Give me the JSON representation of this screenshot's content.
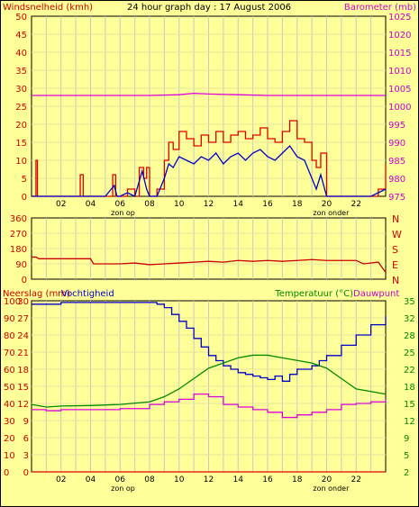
{
  "header": {
    "left_label": "Windsnelheid (kmh)",
    "title": "24 hour graph day : 17 August 2006",
    "right_label": "Barometer (mb)"
  },
  "footer_labels": {
    "sunrise": "zon op",
    "sunset": "zon onder"
  },
  "colors": {
    "background": "#ffff99",
    "grid_v": "#c8c8c8",
    "grid_h": "#e6e6a0",
    "wind": "#0000cc",
    "gust": "#dd0000",
    "barometer": "#dd00dd",
    "temperature": "#008800",
    "dewpoint": "#dd00dd",
    "humidity": "#0000cc",
    "direction": "#cc0000",
    "rain": "#dd0000",
    "left_axis_text": "#cc0000",
    "right_axis_text_top": "#cc00cc",
    "right_axis_text_bottom": "#008800"
  },
  "chart_data": [
    {
      "type": "line",
      "name": "wind_barometer",
      "x_ticks": [
        "02",
        "04",
        "06",
        "08",
        "10",
        "12",
        "14",
        "16",
        "18",
        "20",
        "22"
      ],
      "xlim": [
        0,
        24
      ],
      "left_axis": {
        "label": "Windsnelheid (kmh)",
        "ticks": [
          0,
          5,
          10,
          15,
          20,
          25,
          30,
          35,
          40,
          45,
          50
        ],
        "ylim": [
          0,
          50
        ]
      },
      "right_axis": {
        "label": "Barometer (mb)",
        "ticks": [
          975,
          980,
          985,
          990,
          995,
          1000,
          1005,
          1010,
          1015,
          1020,
          1025
        ],
        "ylim": [
          975,
          1025
        ]
      },
      "wind_speed": [
        [
          0,
          0
        ],
        [
          0.5,
          0
        ],
        [
          1,
          0
        ],
        [
          2,
          0
        ],
        [
          3,
          0
        ],
        [
          4,
          0
        ],
        [
          5,
          0
        ],
        [
          5.6,
          3
        ],
        [
          5.8,
          0
        ],
        [
          6,
          0
        ],
        [
          6.5,
          1
        ],
        [
          7,
          0
        ],
        [
          7.5,
          7
        ],
        [
          7.8,
          2
        ],
        [
          8,
          0
        ],
        [
          8.5,
          0
        ],
        [
          9,
          5
        ],
        [
          9.3,
          9
        ],
        [
          9.6,
          8
        ],
        [
          10,
          11
        ],
        [
          10.5,
          10
        ],
        [
          11,
          9
        ],
        [
          11.5,
          11
        ],
        [
          12,
          10
        ],
        [
          12.5,
          12
        ],
        [
          13,
          9
        ],
        [
          13.5,
          11
        ],
        [
          14,
          12
        ],
        [
          14.5,
          10
        ],
        [
          15,
          12
        ],
        [
          15.5,
          13
        ],
        [
          16,
          11
        ],
        [
          16.5,
          10
        ],
        [
          17,
          12
        ],
        [
          17.5,
          14
        ],
        [
          18,
          11
        ],
        [
          18.5,
          10
        ],
        [
          19,
          5
        ],
        [
          19.3,
          2
        ],
        [
          19.6,
          6
        ],
        [
          20,
          0
        ],
        [
          20.5,
          0
        ],
        [
          21,
          0
        ],
        [
          22,
          0
        ],
        [
          23,
          0
        ],
        [
          23.5,
          1
        ],
        [
          24,
          2
        ]
      ],
      "wind_gust": [
        [
          0,
          0
        ],
        [
          0.3,
          10
        ],
        [
          0.4,
          0
        ],
        [
          1,
          0
        ],
        [
          2,
          0
        ],
        [
          3,
          0
        ],
        [
          3.3,
          6
        ],
        [
          3.5,
          0
        ],
        [
          5,
          0
        ],
        [
          5.5,
          6
        ],
        [
          5.7,
          0
        ],
        [
          6,
          0
        ],
        [
          6.5,
          2
        ],
        [
          7,
          0
        ],
        [
          7.3,
          8
        ],
        [
          7.6,
          5
        ],
        [
          7.8,
          8
        ],
        [
          8,
          0
        ],
        [
          8.5,
          2
        ],
        [
          9,
          10
        ],
        [
          9.3,
          15
        ],
        [
          9.6,
          13
        ],
        [
          10,
          18
        ],
        [
          10.5,
          16
        ],
        [
          11,
          14
        ],
        [
          11.5,
          17
        ],
        [
          12,
          15
        ],
        [
          12.5,
          18
        ],
        [
          13,
          15
        ],
        [
          13.5,
          17
        ],
        [
          14,
          18
        ],
        [
          14.5,
          16
        ],
        [
          15,
          17
        ],
        [
          15.5,
          19
        ],
        [
          16,
          16
        ],
        [
          16.5,
          15
        ],
        [
          17,
          18
        ],
        [
          17.5,
          21
        ],
        [
          18,
          16
        ],
        [
          18.5,
          15
        ],
        [
          19,
          10
        ],
        [
          19.3,
          8
        ],
        [
          19.6,
          12
        ],
        [
          20,
          0
        ],
        [
          20.5,
          0
        ],
        [
          21,
          0
        ],
        [
          22,
          0
        ],
        [
          23,
          0
        ],
        [
          23.5,
          2
        ],
        [
          24,
          9
        ]
      ],
      "barometer": [
        [
          0,
          1003
        ],
        [
          2,
          1003
        ],
        [
          4,
          1003
        ],
        [
          6,
          1003
        ],
        [
          8,
          1003
        ],
        [
          10,
          1003.2
        ],
        [
          11,
          1003.6
        ],
        [
          12,
          1003.4
        ],
        [
          14,
          1003.2
        ],
        [
          16,
          1003
        ],
        [
          18,
          1003
        ],
        [
          20,
          1003
        ],
        [
          22,
          1003
        ],
        [
          24,
          1003
        ]
      ]
    },
    {
      "type": "line",
      "name": "wind_direction",
      "x_ticks": [
        "02",
        "04",
        "06",
        "08",
        "10",
        "12",
        "14",
        "16",
        "18",
        "20",
        "22"
      ],
      "xlim": [
        0,
        24
      ],
      "left_axis": {
        "ticks": [
          0,
          90,
          180,
          270,
          360
        ],
        "ylim": [
          0,
          360
        ]
      },
      "right_labels": [
        "N",
        "W",
        "S",
        "E",
        "N"
      ],
      "direction": [
        [
          0,
          130
        ],
        [
          0.3,
          130
        ],
        [
          0.5,
          120
        ],
        [
          2,
          120
        ],
        [
          4,
          120
        ],
        [
          4.2,
          90
        ],
        [
          5,
          90
        ],
        [
          6,
          90
        ],
        [
          7,
          95
        ],
        [
          8,
          85
        ],
        [
          9,
          90
        ],
        [
          10,
          95
        ],
        [
          11,
          100
        ],
        [
          12,
          105
        ],
        [
          13,
          100
        ],
        [
          14,
          110
        ],
        [
          15,
          105
        ],
        [
          16,
          110
        ],
        [
          17,
          105
        ],
        [
          18,
          110
        ],
        [
          19,
          115
        ],
        [
          20,
          110
        ],
        [
          21,
          110
        ],
        [
          22,
          110
        ],
        [
          22.5,
          90
        ],
        [
          23.5,
          100
        ],
        [
          24,
          40
        ]
      ]
    },
    {
      "type": "line",
      "name": "temp_humidity_rain",
      "x_ticks": [
        "02",
        "04",
        "06",
        "08",
        "10",
        "12",
        "14",
        "16",
        "18",
        "20",
        "22"
      ],
      "xlim": [
        0,
        24
      ],
      "left_labels": {
        "rain": "Neerslag (mm)",
        "humidity": "Vochtigheid"
      },
      "left_axis_humidity": {
        "ticks": [
          0,
          10,
          20,
          30,
          40,
          50,
          60,
          70,
          80,
          90,
          100
        ],
        "ylim": [
          0,
          100
        ]
      },
      "left_axis_rain": {
        "ticks": [
          0,
          3,
          6,
          9,
          12,
          15,
          18,
          21,
          24,
          27,
          30
        ],
        "ylim": [
          0,
          30
        ]
      },
      "right_axis": {
        "label": "Temperatuur (°C)",
        "label2": "Dauwpunt",
        "ticks": [
          2,
          5,
          9,
          12,
          15,
          18,
          22,
          25,
          28,
          32,
          35
        ],
        "ylim": [
          2,
          35
        ]
      },
      "humidity": [
        [
          0,
          98
        ],
        [
          1,
          98
        ],
        [
          2,
          99
        ],
        [
          4,
          99
        ],
        [
          6,
          99
        ],
        [
          8,
          99
        ],
        [
          8.5,
          98
        ],
        [
          9,
          96
        ],
        [
          9.5,
          92
        ],
        [
          10,
          88
        ],
        [
          10.5,
          84
        ],
        [
          11,
          78
        ],
        [
          11.5,
          73
        ],
        [
          12,
          68
        ],
        [
          12.5,
          65
        ],
        [
          13,
          62
        ],
        [
          13.5,
          60
        ],
        [
          14,
          58
        ],
        [
          14.5,
          57
        ],
        [
          15,
          56
        ],
        [
          15.5,
          55
        ],
        [
          16,
          54
        ],
        [
          16.5,
          56
        ],
        [
          17,
          53
        ],
        [
          17.5,
          57
        ],
        [
          18,
          60
        ],
        [
          18.5,
          60
        ],
        [
          19,
          62
        ],
        [
          19.5,
          65
        ],
        [
          20,
          68
        ],
        [
          21,
          74
        ],
        [
          22,
          80
        ],
        [
          23,
          86
        ],
        [
          24,
          91
        ]
      ],
      "temperature": [
        [
          0,
          15
        ],
        [
          1,
          14.5
        ],
        [
          2,
          14.7
        ],
        [
          4,
          14.8
        ],
        [
          6,
          15
        ],
        [
          8,
          15.5
        ],
        [
          9,
          16.5
        ],
        [
          10,
          18
        ],
        [
          11,
          20
        ],
        [
          12,
          22
        ],
        [
          13,
          23
        ],
        [
          14,
          24
        ],
        [
          15,
          24.5
        ],
        [
          16,
          24.5
        ],
        [
          17,
          24
        ],
        [
          18,
          23.5
        ],
        [
          19,
          23
        ],
        [
          20,
          22
        ],
        [
          21,
          20
        ],
        [
          22,
          18
        ],
        [
          23,
          17.5
        ],
        [
          24,
          17
        ]
      ],
      "dewpoint": [
        [
          0,
          14
        ],
        [
          1,
          13.8
        ],
        [
          2,
          14
        ],
        [
          4,
          14
        ],
        [
          6,
          14.2
        ],
        [
          8,
          15
        ],
        [
          9,
          15.5
        ],
        [
          10,
          16
        ],
        [
          11,
          17
        ],
        [
          12,
          16.5
        ],
        [
          13,
          15
        ],
        [
          14,
          14.5
        ],
        [
          15,
          14
        ],
        [
          16,
          13.5
        ],
        [
          17,
          12.5
        ],
        [
          18,
          13
        ],
        [
          19,
          13.5
        ],
        [
          20,
          14
        ],
        [
          21,
          15
        ],
        [
          22,
          15.2
        ],
        [
          23,
          15.5
        ],
        [
          24,
          16
        ]
      ],
      "rain": [
        [
          0,
          0
        ],
        [
          24,
          0
        ]
      ]
    }
  ]
}
